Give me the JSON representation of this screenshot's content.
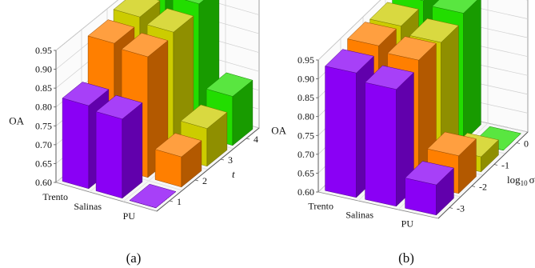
{
  "figure": {
    "panels": [
      {
        "caption": "(a)"
      },
      {
        "caption": "(b)"
      }
    ]
  },
  "chart_data": [
    {
      "type": "bar",
      "subtype": "3d-bar",
      "caption": "(a)",
      "title": "",
      "zlabel": "OA",
      "xlabel": "",
      "ylabel": "t",
      "zlim": [
        0.6,
        0.95
      ],
      "z_ticks": [
        "0.60",
        "0.65",
        "0.70",
        "0.75",
        "0.80",
        "0.85",
        "0.90",
        "0.95"
      ],
      "categories": [
        "Trento",
        "Salinas",
        "PU"
      ],
      "depth_ticks": [
        "1",
        "2",
        "3",
        "4"
      ],
      "grid": true,
      "series": [
        {
          "depth": "1",
          "color": "#8A00F5",
          "values": [
            0.82,
            0.81,
            0.6
          ]
        },
        {
          "depth": "2",
          "color": "#FF7F00",
          "values": [
            0.93,
            0.92,
            0.68
          ]
        },
        {
          "depth": "3",
          "color": "#CCCC00",
          "values": [
            0.945,
            0.93,
            0.7
          ]
        },
        {
          "depth": "4",
          "color": "#22DD00",
          "values": [
            0.955,
            0.95,
            0.73
          ]
        }
      ]
    },
    {
      "type": "bar",
      "subtype": "3d-bar",
      "caption": "(b)",
      "title": "",
      "zlabel": "OA",
      "xlabel": "",
      "ylabel": "log10 σ",
      "ylabel_parts": {
        "base": "log",
        "sub": "10",
        "sym": "σ"
      },
      "zlim": [
        0.6,
        0.95
      ],
      "z_ticks": [
        "0.60",
        "0.65",
        "0.70",
        "0.75",
        "0.80",
        "0.85",
        "0.90",
        "0.95"
      ],
      "categories": [
        "Trento",
        "Salinas",
        "PU"
      ],
      "depth_ticks": [
        "-3",
        "-2",
        "-1",
        "0"
      ],
      "grid": true,
      "series": [
        {
          "depth": "-3",
          "color": "#8A00F5",
          "values": [
            0.93,
            0.91,
            0.68
          ]
        },
        {
          "depth": "-2",
          "color": "#FF7F00",
          "values": [
            0.945,
            0.93,
            0.7
          ]
        },
        {
          "depth": "-1",
          "color": "#CCCC00",
          "values": [
            0.94,
            0.92,
            0.64
          ]
        },
        {
          "depth": "0",
          "color": "#22DD00",
          "values": [
            0.95,
            0.94,
            0.6
          ]
        }
      ]
    }
  ]
}
